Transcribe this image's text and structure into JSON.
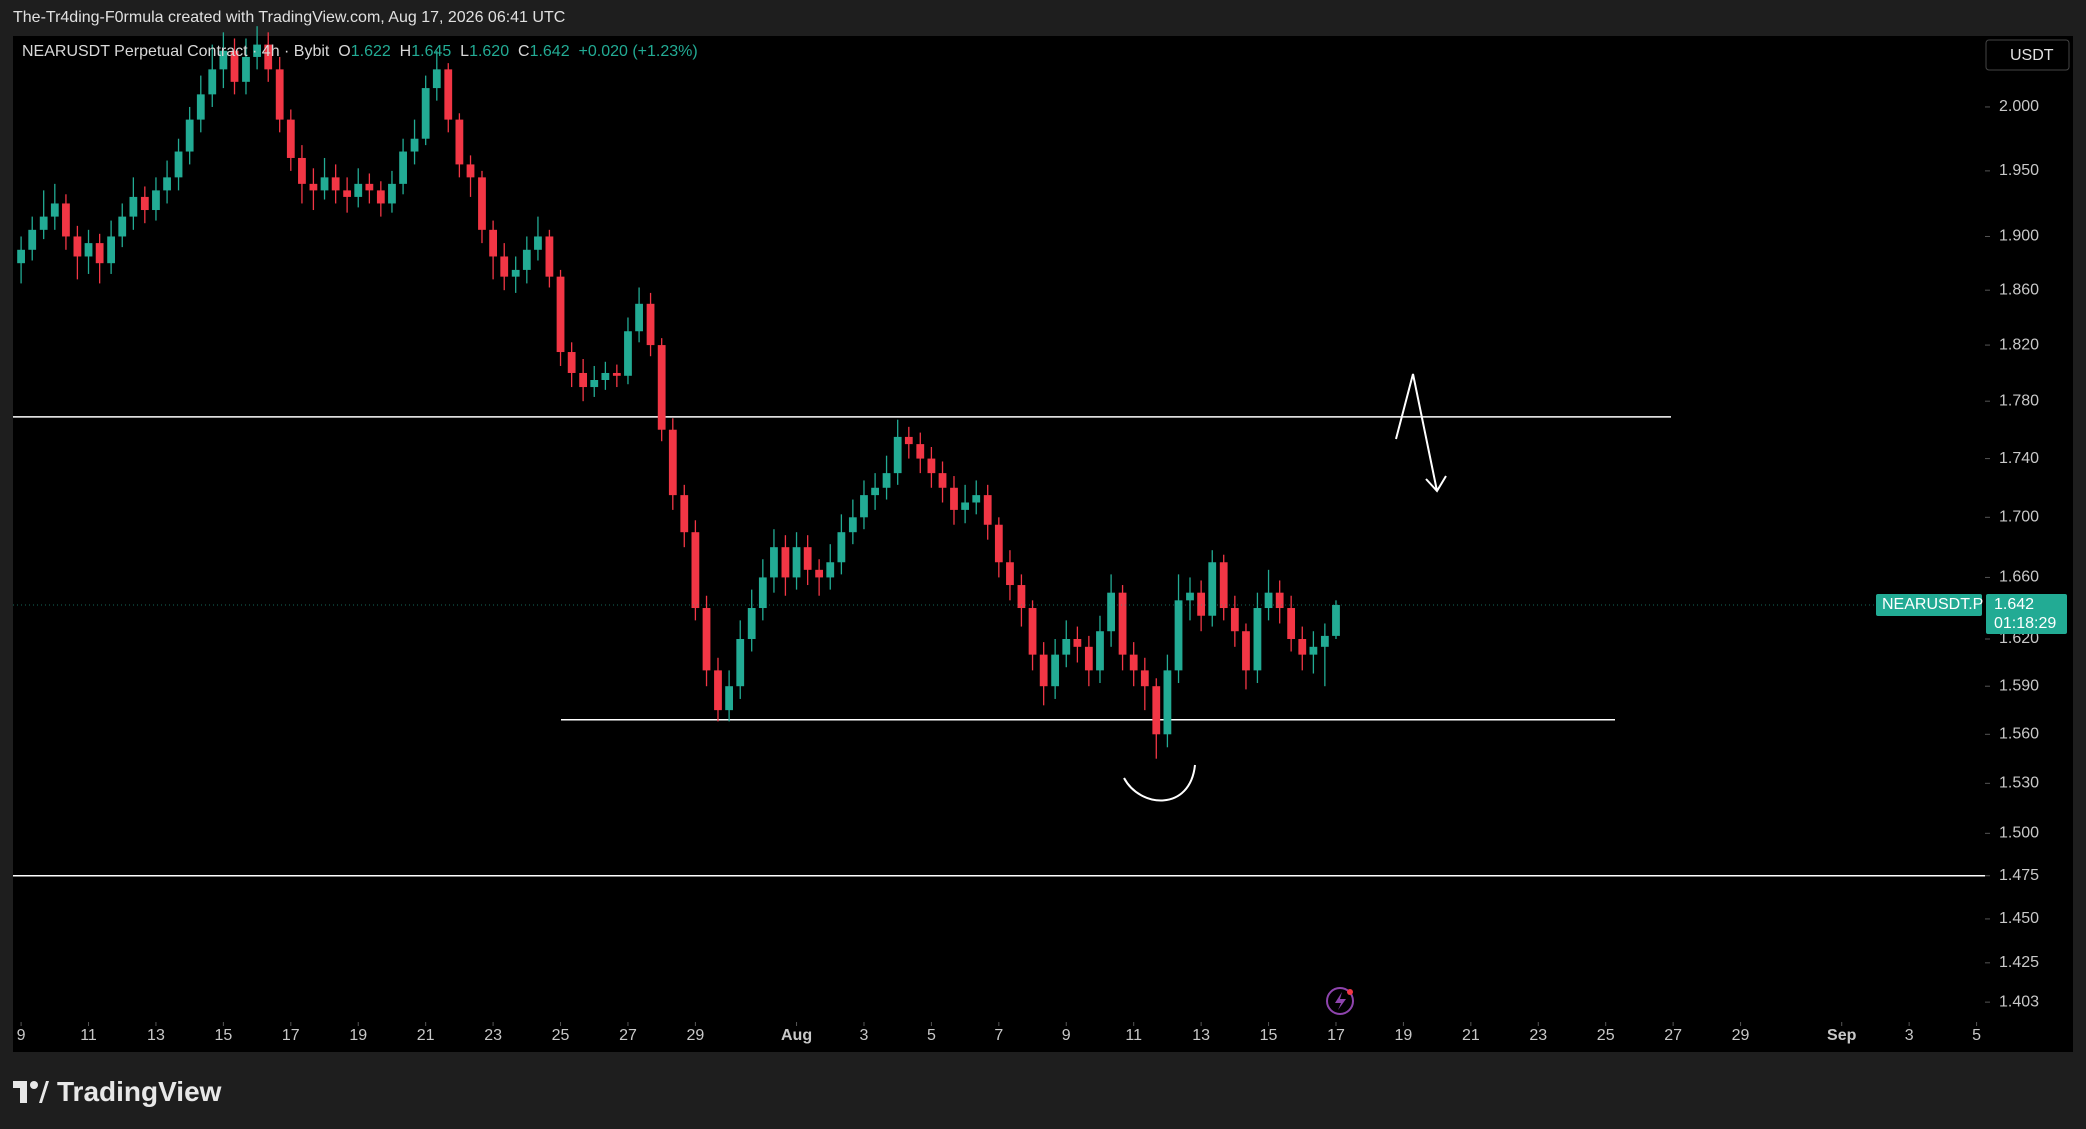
{
  "top_bar": {
    "text": "The-Tr4ding-F0rmula created with TradingView.com, Aug 17, 2026 06:41 UTC"
  },
  "footer": {
    "logo": "TradingView"
  },
  "chart_data": {
    "type": "candlestick",
    "title": "NEARUSDT Perpetual Contract · 4h · Bybit",
    "legend_keys": [
      "O",
      "H",
      "L",
      "C"
    ],
    "legend_values": {
      "open": "1.622",
      "high": "1.645",
      "low": "1.620",
      "close": "1.642",
      "change": "+0.020 (+1.23%)"
    },
    "currency": "USDT",
    "symbol_tag": "NEARUSDT.P",
    "countdown": "01:18:29",
    "up_color": "#22ab94",
    "down_color": "#f23645",
    "log_scale": true,
    "grid": false,
    "ylim": [
      1.392,
      2.057
    ],
    "yticks": [
      {
        "value": 2,
        "label": "2.000"
      },
      {
        "value": 1.95,
        "label": "1.950"
      },
      {
        "value": 1.9,
        "label": "1.900"
      },
      {
        "value": 1.86,
        "label": "1.860"
      },
      {
        "value": 1.82,
        "label": "1.820"
      },
      {
        "value": 1.78,
        "label": "1.780"
      },
      {
        "value": 1.74,
        "label": "1.740"
      },
      {
        "value": 1.7,
        "label": "1.700"
      },
      {
        "value": 1.66,
        "label": "1.660"
      },
      {
        "value": 1.62,
        "label": "1.620"
      },
      {
        "value": 1.59,
        "label": "1.590"
      },
      {
        "value": 1.56,
        "label": "1.560"
      },
      {
        "value": 1.53,
        "label": "1.530"
      },
      {
        "value": 1.5,
        "label": "1.500"
      },
      1.475,
      {
        "value": 1.45,
        "label": "1.450"
      },
      1.425,
      1.403
    ],
    "xlim": [
      8.76,
      67.25
    ],
    "xticks": [
      9,
      11,
      13,
      15,
      17,
      19,
      21,
      23,
      25,
      27,
      29,
      {
        "value": 32,
        "label": "Aug"
      },
      {
        "value": 34,
        "label": "3"
      },
      {
        "value": 36,
        "label": "5"
      },
      {
        "value": 38,
        "label": "7"
      },
      {
        "value": 40,
        "label": "9"
      },
      {
        "value": 42,
        "label": "11"
      },
      {
        "value": 44,
        "label": "13"
      },
      {
        "value": 46,
        "label": "15"
      },
      {
        "value": 48,
        "label": "17"
      },
      {
        "value": 50,
        "label": "19"
      },
      {
        "value": 52,
        "label": "21"
      },
      {
        "value": 54,
        "label": "23"
      },
      {
        "value": 56,
        "label": "25"
      },
      {
        "value": 58,
        "label": "27"
      },
      {
        "value": 60,
        "label": "29"
      },
      {
        "value": 63,
        "label": "Sep"
      },
      {
        "value": 65,
        "label": "3"
      },
      {
        "value": 67,
        "label": "5"
      }
    ],
    "levels": [
      1.769,
      1.569,
      1.475
    ],
    "x": [
      9,
      9.33,
      9.67,
      10,
      10.33,
      10.67,
      11,
      11.33,
      11.67,
      12,
      12.33,
      12.67,
      13,
      13.33,
      13.67,
      14,
      14.33,
      14.67,
      15,
      15.33,
      15.67,
      16,
      16.33,
      16.67,
      17,
      17.33,
      17.67,
      18,
      18.33,
      18.67,
      19,
      19.33,
      19.67,
      20,
      20.33,
      20.67,
      21,
      21.33,
      21.67,
      22,
      22.33,
      22.67,
      23,
      23.33,
      23.67,
      24,
      24.33,
      24.67,
      25,
      25.33,
      25.67,
      26,
      26.33,
      26.67,
      27,
      27.33,
      27.67,
      28,
      28.33,
      28.67,
      29,
      29.33,
      29.67,
      30,
      30.33,
      30.67,
      31,
      31.33,
      31.67,
      32,
      32.33,
      32.67,
      33,
      33.33,
      33.67,
      34,
      34.33,
      34.67,
      35,
      35.33,
      35.67,
      36,
      36.33,
      36.67,
      37,
      37.33,
      37.67,
      38,
      38.33,
      38.67,
      39,
      39.33,
      39.67,
      40,
      40.33,
      40.67,
      41,
      41.33,
      41.67,
      42,
      42.33,
      42.67,
      43,
      43.33,
      43.67,
      44,
      44.33,
      44.67,
      45,
      45.33,
      45.67,
      46,
      46.33,
      46.67,
      47,
      47.33,
      47.67,
      48
    ],
    "ohlc": [
      [
        1.88,
        1.9,
        1.865,
        1.89
      ],
      [
        1.89,
        1.915,
        1.882,
        1.905
      ],
      [
        1.905,
        1.935,
        1.898,
        1.915
      ],
      [
        1.915,
        1.94,
        1.905,
        1.925
      ],
      [
        1.925,
        1.932,
        1.89,
        1.9
      ],
      [
        1.9,
        1.908,
        1.868,
        1.885
      ],
      [
        1.885,
        1.905,
        1.872,
        1.895
      ],
      [
        1.895,
        1.902,
        1.865,
        1.88
      ],
      [
        1.88,
        1.912,
        1.872,
        1.9
      ],
      [
        1.9,
        1.925,
        1.892,
        1.915
      ],
      [
        1.915,
        1.945,
        1.905,
        1.93
      ],
      [
        1.93,
        1.938,
        1.91,
        1.92
      ],
      [
        1.92,
        1.945,
        1.912,
        1.935
      ],
      [
        1.935,
        1.958,
        1.925,
        1.945
      ],
      [
        1.945,
        1.975,
        1.935,
        1.965
      ],
      [
        1.965,
        2,
        1.955,
        1.99
      ],
      [
        1.99,
        2.025,
        1.98,
        2.01
      ],
      [
        2.01,
        2.05,
        2,
        2.03
      ],
      [
        2.03,
        2.06,
        2.015,
        2.045
      ],
      [
        2.045,
        2.055,
        2.01,
        2.02
      ],
      [
        2.02,
        2.055,
        2.01,
        2.04
      ],
      [
        2.04,
        2.065,
        2.03,
        2.05
      ],
      [
        2.05,
        2.06,
        2.02,
        2.03
      ],
      [
        2.03,
        2.04,
        1.98,
        1.99
      ],
      [
        1.99,
        1.998,
        1.95,
        1.96
      ],
      [
        1.96,
        1.97,
        1.925,
        1.94
      ],
      [
        1.94,
        1.952,
        1.92,
        1.935
      ],
      [
        1.935,
        1.96,
        1.928,
        1.945
      ],
      [
        1.945,
        1.955,
        1.925,
        1.935
      ],
      [
        1.935,
        1.945,
        1.918,
        1.93
      ],
      [
        1.93,
        1.952,
        1.922,
        1.94
      ],
      [
        1.94,
        1.948,
        1.925,
        1.935
      ],
      [
        1.935,
        1.942,
        1.915,
        1.925
      ],
      [
        1.925,
        1.95,
        1.918,
        1.94
      ],
      [
        1.94,
        1.975,
        1.932,
        1.965
      ],
      [
        1.965,
        1.99,
        1.955,
        1.975
      ],
      [
        1.975,
        2.025,
        1.97,
        2.015
      ],
      [
        2.015,
        2.045,
        2.005,
        2.03
      ],
      [
        2.03,
        2.035,
        1.98,
        1.99
      ],
      [
        1.99,
        1.995,
        1.945,
        1.955
      ],
      [
        1.955,
        1.962,
        1.93,
        1.945
      ],
      [
        1.945,
        1.95,
        1.895,
        1.905
      ],
      [
        1.905,
        1.912,
        1.868,
        1.885
      ],
      [
        1.885,
        1.895,
        1.86,
        1.87
      ],
      [
        1.87,
        1.885,
        1.858,
        1.875
      ],
      [
        1.875,
        1.9,
        1.865,
        1.89
      ],
      [
        1.89,
        1.915,
        1.882,
        1.9
      ],
      [
        1.9,
        1.905,
        1.862,
        1.87
      ],
      [
        1.87,
        1.875,
        1.805,
        1.815
      ],
      [
        1.815,
        1.822,
        1.79,
        1.8
      ],
      [
        1.8,
        1.81,
        1.78,
        1.79
      ],
      [
        1.79,
        1.805,
        1.783,
        1.795
      ],
      [
        1.795,
        1.808,
        1.788,
        1.8
      ],
      [
        1.8,
        1.806,
        1.79,
        1.798
      ],
      [
        1.798,
        1.84,
        1.792,
        1.83
      ],
      [
        1.83,
        1.862,
        1.822,
        1.85
      ],
      [
        1.85,
        1.858,
        1.812,
        1.82
      ],
      [
        1.82,
        1.825,
        1.752,
        1.76
      ],
      [
        1.76,
        1.768,
        1.705,
        1.715
      ],
      [
        1.715,
        1.722,
        1.68,
        1.69
      ],
      [
        1.69,
        1.698,
        1.632,
        1.64
      ],
      [
        1.64,
        1.648,
        1.59,
        1.6
      ],
      [
        1.6,
        1.608,
        1.568,
        1.575
      ],
      [
        1.575,
        1.6,
        1.568,
        1.59
      ],
      [
        1.59,
        1.632,
        1.582,
        1.62
      ],
      [
        1.62,
        1.652,
        1.612,
        1.64
      ],
      [
        1.64,
        1.672,
        1.632,
        1.66
      ],
      [
        1.66,
        1.692,
        1.65,
        1.68
      ],
      [
        1.68,
        1.688,
        1.648,
        1.66
      ],
      [
        1.66,
        1.69,
        1.652,
        1.68
      ],
      [
        1.68,
        1.688,
        1.655,
        1.665
      ],
      [
        1.665,
        1.672,
        1.648,
        1.66
      ],
      [
        1.66,
        1.682,
        1.652,
        1.67
      ],
      [
        1.67,
        1.702,
        1.662,
        1.69
      ],
      [
        1.69,
        1.712,
        1.682,
        1.7
      ],
      [
        1.7,
        1.725,
        1.692,
        1.715
      ],
      [
        1.715,
        1.73,
        1.705,
        1.72
      ],
      [
        1.72,
        1.742,
        1.712,
        1.73
      ],
      [
        1.73,
        1.767,
        1.722,
        1.755
      ],
      [
        1.755,
        1.762,
        1.74,
        1.75
      ],
      [
        1.75,
        1.758,
        1.73,
        1.74
      ],
      [
        1.74,
        1.748,
        1.72,
        1.73
      ],
      [
        1.73,
        1.738,
        1.71,
        1.72
      ],
      [
        1.72,
        1.728,
        1.695,
        1.705
      ],
      [
        1.705,
        1.722,
        1.696,
        1.71
      ],
      [
        1.71,
        1.725,
        1.702,
        1.715
      ],
      [
        1.715,
        1.722,
        1.685,
        1.695
      ],
      [
        1.695,
        1.7,
        1.66,
        1.67
      ],
      [
        1.67,
        1.678,
        1.645,
        1.655
      ],
      [
        1.655,
        1.662,
        1.628,
        1.64
      ],
      [
        1.64,
        1.645,
        1.6,
        1.61
      ],
      [
        1.61,
        1.618,
        1.578,
        1.59
      ],
      [
        1.59,
        1.62,
        1.582,
        1.61
      ],
      [
        1.61,
        1.632,
        1.602,
        1.62
      ],
      [
        1.62,
        1.628,
        1.605,
        1.615
      ],
      [
        1.615,
        1.622,
        1.59,
        1.6
      ],
      [
        1.6,
        1.635,
        1.592,
        1.625
      ],
      [
        1.625,
        1.662,
        1.615,
        1.65
      ],
      [
        1.65,
        1.655,
        1.6,
        1.61
      ],
      [
        1.61,
        1.618,
        1.59,
        1.6
      ],
      [
        1.6,
        1.608,
        1.575,
        1.59
      ],
      [
        1.59,
        1.595,
        1.545,
        1.56
      ],
      [
        1.56,
        1.61,
        1.552,
        1.6
      ],
      [
        1.6,
        1.662,
        1.592,
        1.645
      ],
      [
        1.645,
        1.66,
        1.632,
        1.65
      ],
      [
        1.65,
        1.658,
        1.625,
        1.635
      ],
      [
        1.635,
        1.678,
        1.628,
        1.67
      ],
      [
        1.67,
        1.675,
        1.632,
        1.64
      ],
      [
        1.64,
        1.648,
        1.615,
        1.625
      ],
      [
        1.625,
        1.63,
        1.588,
        1.6
      ],
      [
        1.6,
        1.65,
        1.592,
        1.64
      ],
      [
        1.64,
        1.665,
        1.632,
        1.65
      ],
      [
        1.65,
        1.658,
        1.63,
        1.64
      ],
      [
        1.64,
        1.648,
        1.612,
        1.62
      ],
      [
        1.62,
        1.628,
        1.6,
        1.61
      ],
      [
        1.61,
        1.625,
        1.598,
        1.615
      ],
      [
        1.615,
        1.63,
        1.59,
        1.622
      ],
      [
        1.622,
        1.645,
        1.62,
        1.642
      ]
    ]
  }
}
